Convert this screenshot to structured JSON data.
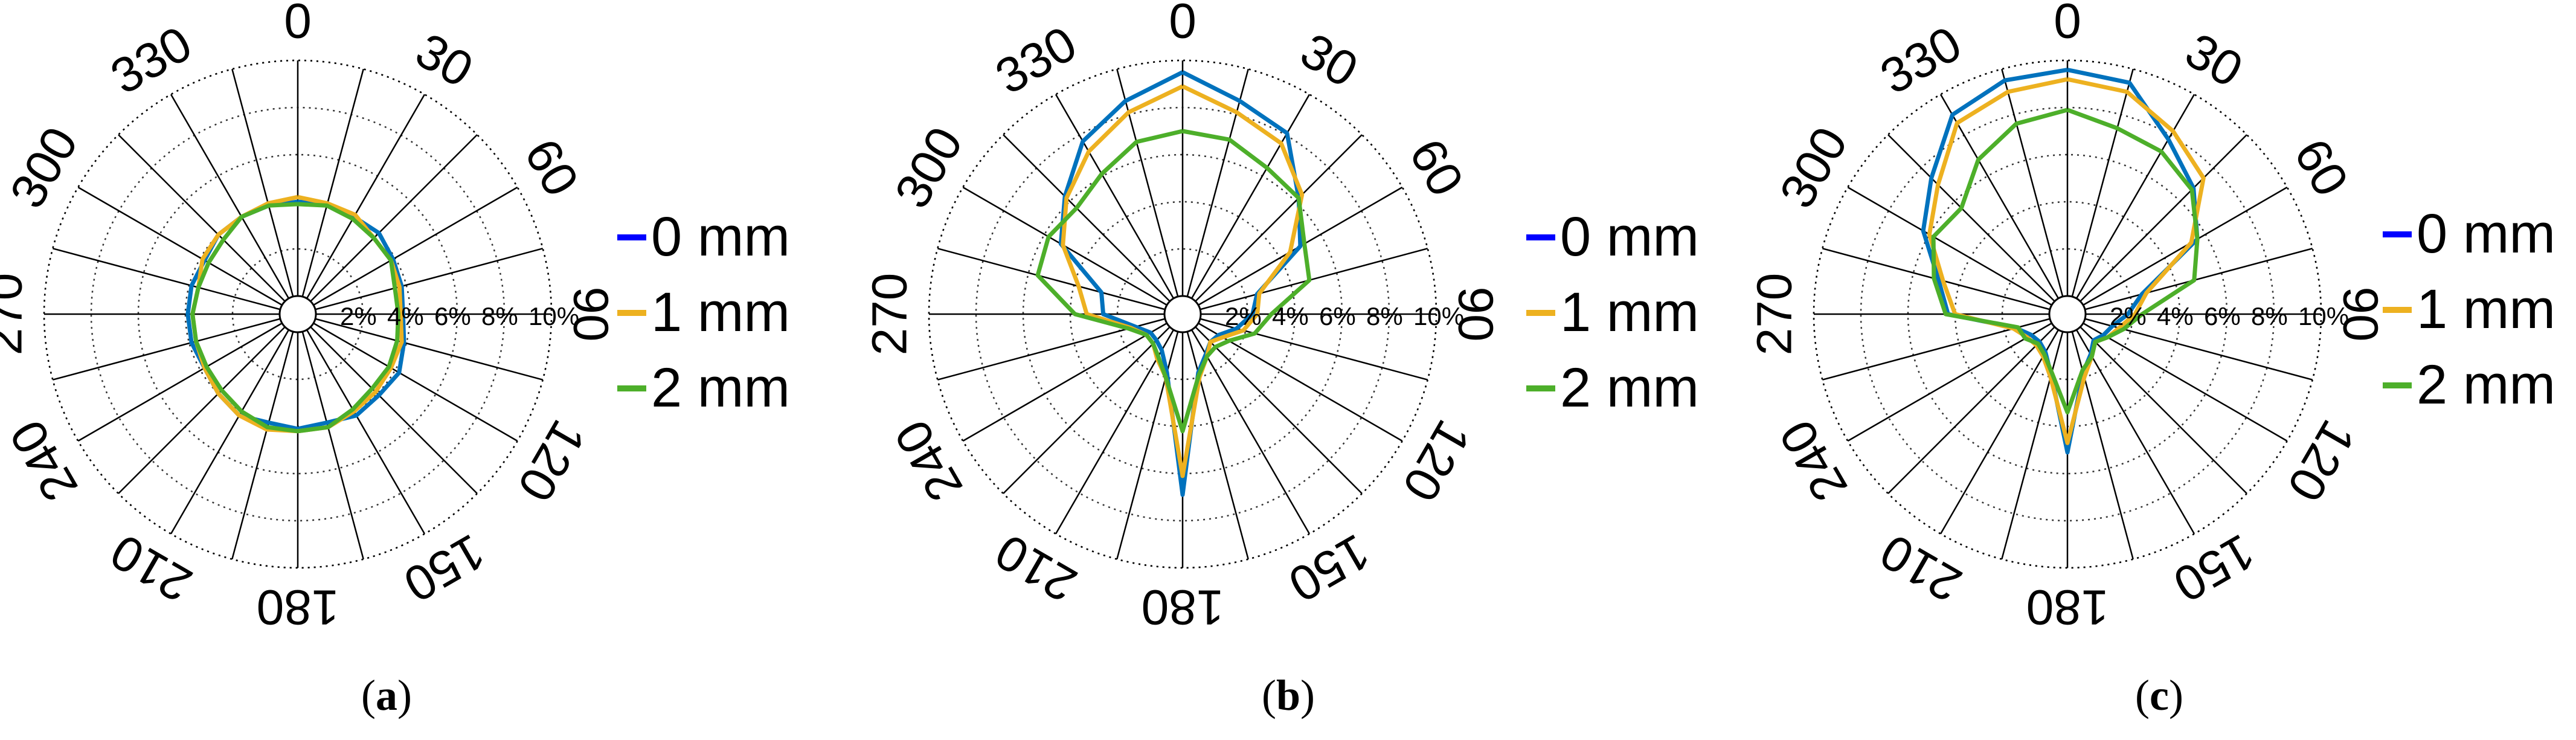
{
  "figure": {
    "colors": {
      "s0": "#0072BD",
      "s1": "#EDB120",
      "s2": "#4DAF2A",
      "legend_s0": "#0000FF",
      "grid": "#000000"
    }
  },
  "chart_data": [
    {
      "type": "polar-line",
      "panel_label": "a",
      "angle_ticks": [
        "0",
        "30",
        "60",
        "90",
        "120",
        "150",
        "180",
        "210",
        "240",
        "270",
        "300",
        "330"
      ],
      "radial_ticks": [
        "2%",
        "4%",
        "6%",
        "8%",
        "10%"
      ],
      "rlim": [
        0,
        10
      ],
      "angle_step_deg": 15,
      "theta_deg": [
        0,
        15,
        30,
        45,
        60,
        75,
        90,
        105,
        120,
        135,
        150,
        165,
        180,
        195,
        210,
        225,
        240,
        255,
        270,
        285,
        300,
        315,
        330,
        345
      ],
      "series": [
        {
          "name": "0 mm",
          "values": [
            4.0,
            4.1,
            4.0,
            4.1,
            3.9,
            3.8,
            3.7,
            3.9,
            4.2,
            4.1,
            4.2,
            4.0,
            4.1,
            4.0,
            4.2,
            4.0,
            3.8,
            3.9,
            3.9,
            3.9,
            3.8,
            4.0,
            4.0,
            4.0
          ]
        },
        {
          "name": "1 mm",
          "values": [
            4.2,
            4.1,
            4.1,
            3.8,
            3.8,
            3.7,
            3.6,
            3.8,
            3.8,
            3.9,
            4.0,
            4.2,
            4.2,
            4.3,
            4.2,
            4.0,
            3.8,
            3.7,
            3.7,
            3.6,
            3.9,
            4.0,
            4.0,
            4.1
          ]
        },
        {
          "name": "2 mm",
          "values": [
            3.9,
            4.0,
            3.9,
            3.8,
            3.8,
            3.5,
            3.5,
            3.6,
            3.7,
            3.7,
            3.9,
            4.2,
            4.2,
            4.2,
            4.0,
            3.8,
            3.7,
            3.7,
            3.7,
            3.6,
            3.6,
            3.7,
            4.0,
            4.0
          ]
        }
      ],
      "legend_position": "right"
    },
    {
      "type": "polar-line",
      "panel_label": "b",
      "angle_ticks": [
        "0",
        "30",
        "60",
        "90",
        "120",
        "150",
        "180",
        "210",
        "240",
        "270",
        "300",
        "330"
      ],
      "radial_ticks": [
        "2%",
        "4%",
        "6%",
        "8%",
        "10%"
      ],
      "rlim": [
        0,
        10
      ],
      "angle_step_deg": 15,
      "theta_deg": [
        0,
        15,
        30,
        45,
        60,
        75,
        90,
        105,
        120,
        135,
        150,
        165,
        180,
        195,
        210,
        225,
        240,
        255,
        270,
        285,
        300,
        315,
        330,
        345
      ],
      "series": [
        {
          "name": "0 mm",
          "values": [
            9.5,
            8.6,
            8.1,
            6.2,
            5.0,
            2.5,
            2.2,
            1.6,
            1.0,
            0.9,
            1.2,
            1.8,
            6.9,
            1.8,
            1.0,
            0.8,
            0.8,
            1.3,
            2.6,
            2.8,
            5.2,
            6.3,
            7.7,
            8.6
          ]
        },
        {
          "name": "1 mm",
          "values": [
            8.9,
            8.1,
            7.6,
            6.4,
            4.5,
            2.6,
            2.4,
            1.9,
            1.2,
            0.9,
            1.3,
            2.0,
            6.1,
            2.0,
            1.4,
            1.0,
            1.0,
            1.5,
            3.3,
            3.8,
            5.1,
            6.2,
            7.2,
            8.1
          ]
        },
        {
          "name": "2 mm",
          "values": [
            7.0,
            6.9,
            6.4,
            6.2,
            5.2,
            4.8,
            3.0,
            2.4,
            1.5,
            1.2,
            1.3,
            1.9,
            4.2,
            2.0,
            1.3,
            1.0,
            1.0,
            1.6,
            3.8,
            5.6,
            5.8,
            5.6,
            6.1,
            6.8
          ]
        }
      ],
      "legend_position": "right"
    },
    {
      "type": "polar-line",
      "panel_label": "c",
      "angle_ticks": [
        "0",
        "30",
        "60",
        "90",
        "120",
        "150",
        "180",
        "210",
        "240",
        "270",
        "300",
        "330"
      ],
      "radial_ticks": [
        "2%",
        "4%",
        "6%",
        "8%",
        "10%"
      ],
      "rlim": [
        0,
        10
      ],
      "angle_step_deg": 15,
      "theta_deg": [
        0,
        15,
        30,
        45,
        60,
        75,
        90,
        105,
        120,
        135,
        150,
        165,
        180,
        195,
        210,
        225,
        240,
        255,
        270,
        285,
        300,
        315,
        330,
        345
      ],
      "series": [
        {
          "name": "0 mm",
          "values": [
            9.6,
            9.4,
            7.8,
            6.8,
            5.6,
            2.5,
            1.8,
            1.2,
            1.0,
            0.8,
            1.2,
            1.8,
            5.1,
            1.9,
            1.1,
            0.9,
            1.0,
            1.5,
            4.3,
            4.9,
            6.3,
            7.4,
            9.0,
            9.5
          ]
        },
        {
          "name": "1 mm",
          "values": [
            9.2,
            9.0,
            8.2,
            7.4,
            5.3,
            2.7,
            2.1,
            1.5,
            1.2,
            0.9,
            1.3,
            2.0,
            4.7,
            2.0,
            1.3,
            1.1,
            1.2,
            1.6,
            4.0,
            4.7,
            6.0,
            7.0,
            8.6,
            9.0
          ]
        },
        {
          "name": "2 mm",
          "values": [
            7.9,
            7.4,
            7.2,
            6.7,
            5.6,
            4.8,
            2.4,
            1.7,
            1.2,
            0.9,
            1.3,
            1.7,
            3.4,
            1.8,
            1.2,
            1.0,
            1.3,
            1.4,
            4.4,
            5.1,
            5.8,
            5.6,
            6.8,
            7.6
          ]
        }
      ],
      "legend_position": "right"
    }
  ]
}
